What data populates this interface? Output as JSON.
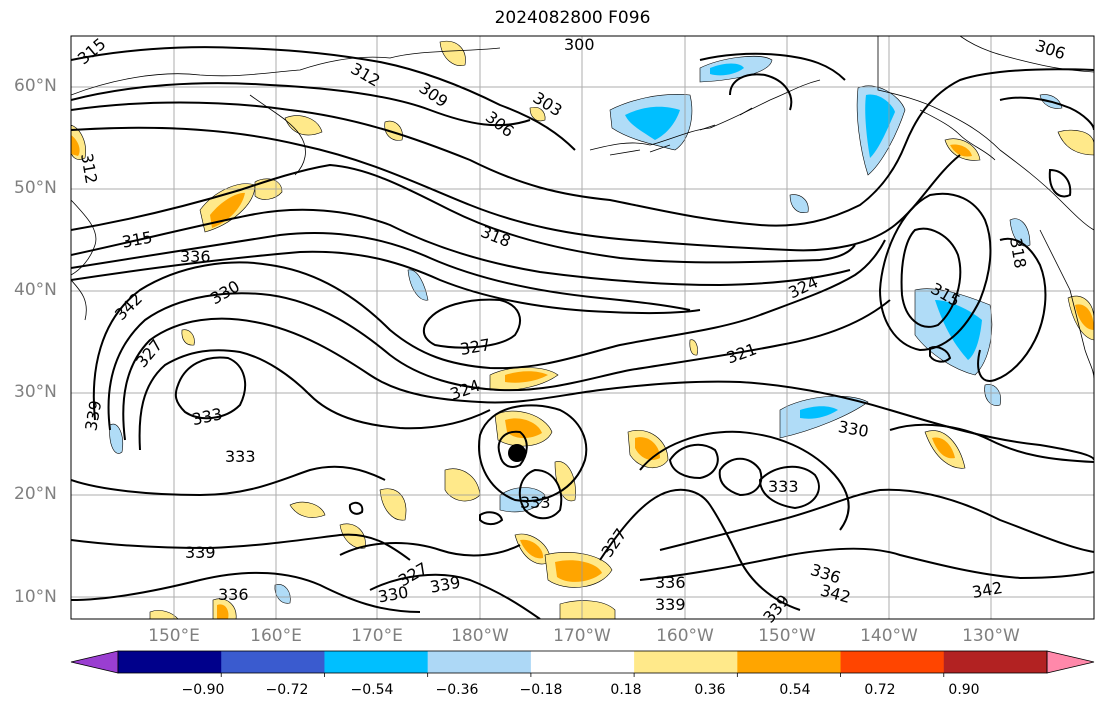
{
  "title": "2024082800 F096",
  "lat_labels": [
    "60°N",
    "50°N",
    "40°N",
    "30°N",
    "20°N",
    "10°N"
  ],
  "lon_labels": [
    "150°E",
    "160°E",
    "170°E",
    "180°W",
    "170°W",
    "160°W",
    "150°W",
    "140°W",
    "130°W"
  ],
  "contour_labels": [
    "315",
    "312",
    "309",
    "306",
    "303",
    "300",
    "306",
    "312",
    "315",
    "318",
    "336",
    "342",
    "330",
    "327",
    "324",
    "321",
    "324",
    "327",
    "315",
    "318",
    "333",
    "333",
    "339",
    "330",
    "333",
    "339",
    "336",
    "327",
    "330",
    "339",
    "336",
    "339",
    "327",
    "333",
    "336",
    "342",
    "342",
    "339"
  ],
  "colorbar": {
    "ticks": [
      "−0.90",
      "−0.72",
      "−0.54",
      "−0.36",
      "−0.18",
      "0.18",
      "0.36",
      "0.54",
      "0.72",
      "0.90"
    ],
    "colors": [
      "#9a3ed1",
      "#00008b",
      "#3a5bcf",
      "#00bfff",
      "#add8f6",
      "#ffffff",
      "#ffe98a",
      "#ffa500",
      "#ff4500",
      "#b22222",
      "#ff88aa"
    ]
  },
  "colors": {
    "contour": "#000000",
    "grid": "#9a9a9a",
    "coast": "#000000",
    "neg_light": "#b0dcf7",
    "neg_mid": "#00bfff",
    "pos_light": "#ffe98a",
    "pos_mid": "#ffa500"
  },
  "marker": "storm-center"
}
